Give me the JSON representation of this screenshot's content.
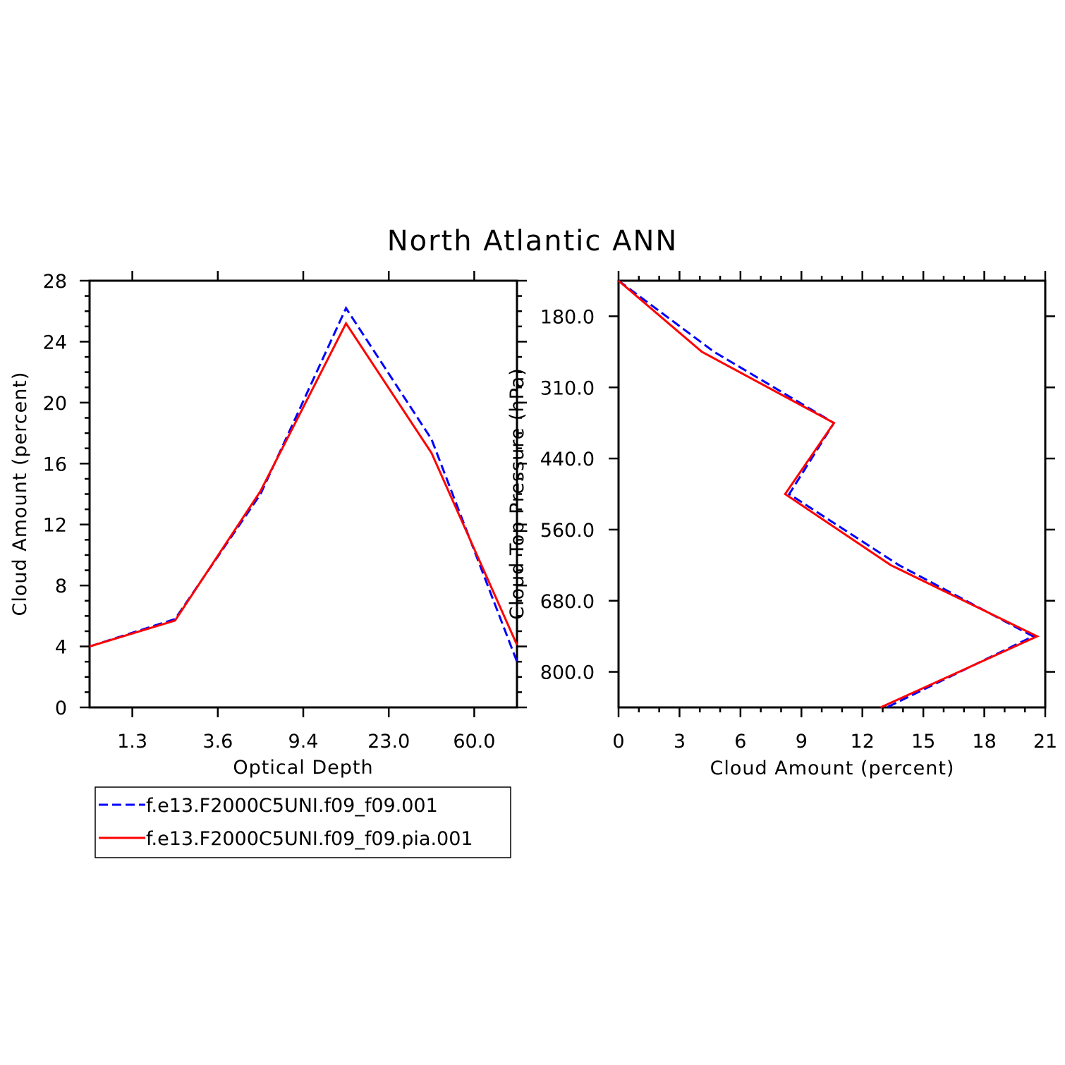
{
  "title": "North Atlantic ANN",
  "chart_data": [
    {
      "type": "line",
      "xlabel": "Optical Depth",
      "ylabel": "Cloud Amount (percent)",
      "x_tick_labels": [
        "1.3",
        "3.6",
        "9.4",
        "23.0",
        "60.0"
      ],
      "y_ticks": [
        0,
        4,
        8,
        12,
        16,
        20,
        24,
        28
      ],
      "ylim": [
        0,
        28
      ],
      "x_categories": 6,
      "series": [
        {
          "name": "f.e13.F2000C5UNI.f09_f09.001",
          "color": "#0000ff",
          "dash": "dashed",
          "values": [
            4.0,
            5.8,
            14.0,
            26.2,
            17.6,
            3.0
          ]
        },
        {
          "name": "f.e13.F2000C5UNI.f09_f09.pia.001",
          "color": "#ff0000",
          "dash": "solid",
          "values": [
            4.0,
            5.7,
            14.2,
            25.2,
            16.7,
            4.1
          ]
        }
      ]
    },
    {
      "type": "line",
      "xlabel": "Cloud Amount (percent)",
      "ylabel": "Cloud Top Pressure (hPa)",
      "x_ticks": [
        0,
        3,
        6,
        9,
        12,
        15,
        18,
        21
      ],
      "xlim": [
        0,
        21
      ],
      "y_tick_labels": [
        "180.0",
        "310.0",
        "440.0",
        "560.0",
        "680.0",
        "800.0"
      ],
      "y_levels": 7,
      "series": [
        {
          "name": "f.e13.F2000C5UNI.f09_f09.001",
          "color": "#0000ff",
          "dash": "dashed",
          "values": [
            0.0,
            4.7,
            10.6,
            8.4,
            13.8,
            20.4,
            13.2
          ]
        },
        {
          "name": "f.e13.F2000C5UNI.f09_f09.pia.001",
          "color": "#ff0000",
          "dash": "solid",
          "values": [
            0.0,
            4.1,
            10.6,
            8.2,
            13.4,
            20.6,
            12.9
          ]
        }
      ]
    }
  ],
  "legend": {
    "entries": [
      {
        "label": "f.e13.F2000C5UNI.f09_f09.001",
        "color": "#0000ff",
        "dash": "dashed"
      },
      {
        "label": "f.e13.F2000C5UNI.f09_f09.pia.001",
        "color": "#ff0000",
        "dash": "solid"
      }
    ]
  }
}
